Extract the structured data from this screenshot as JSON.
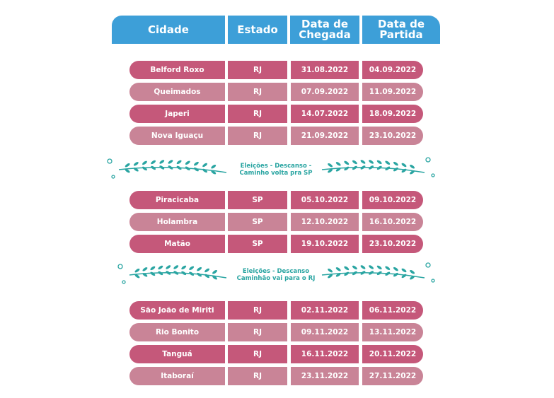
{
  "header": {
    "columns": [
      "Cidade",
      "Estado",
      "Data de\nChegada",
      "Data de\nPartida"
    ]
  },
  "groups": [
    {
      "rows": [
        [
          "Belford Roxo",
          "RJ",
          "31.08.2022",
          "04.09.2022"
        ],
        [
          "Queimados",
          "RJ",
          "07.09.2022",
          "11.09.2022"
        ],
        [
          "Japeri",
          "RJ",
          "14.07.2022",
          "18.09.2022"
        ],
        [
          "Nova Iguaçu",
          "RJ",
          "21.09.2022",
          "23.10.2022"
        ]
      ],
      "note": "Eleições  - Descanso -\nCaminho volta pra SP"
    },
    {
      "rows": [
        [
          "Piracicaba",
          "SP",
          "05.10.2022",
          "09.10.2022"
        ],
        [
          "Holambra",
          "SP",
          "12.10.2022",
          "16.10.2022"
        ],
        [
          "Matão",
          "SP",
          "19.10.2022",
          "23.10.2022"
        ]
      ],
      "note": "Eleições  - Descanso\nCaminhão vai para o RJ"
    },
    {
      "rows": [
        [
          "São João de Miriti",
          "RJ",
          "02.11.2022",
          "06.11.2022"
        ],
        [
          "Rio Bonito",
          "RJ",
          "09.11.2022",
          "13.11.2022"
        ],
        [
          "Tanguá",
          "RJ",
          "16.11.2022",
          "20.11.2022"
        ],
        [
          "Itaboraí",
          "RJ",
          "23.11.2022",
          "27.11.2022"
        ]
      ]
    }
  ]
}
